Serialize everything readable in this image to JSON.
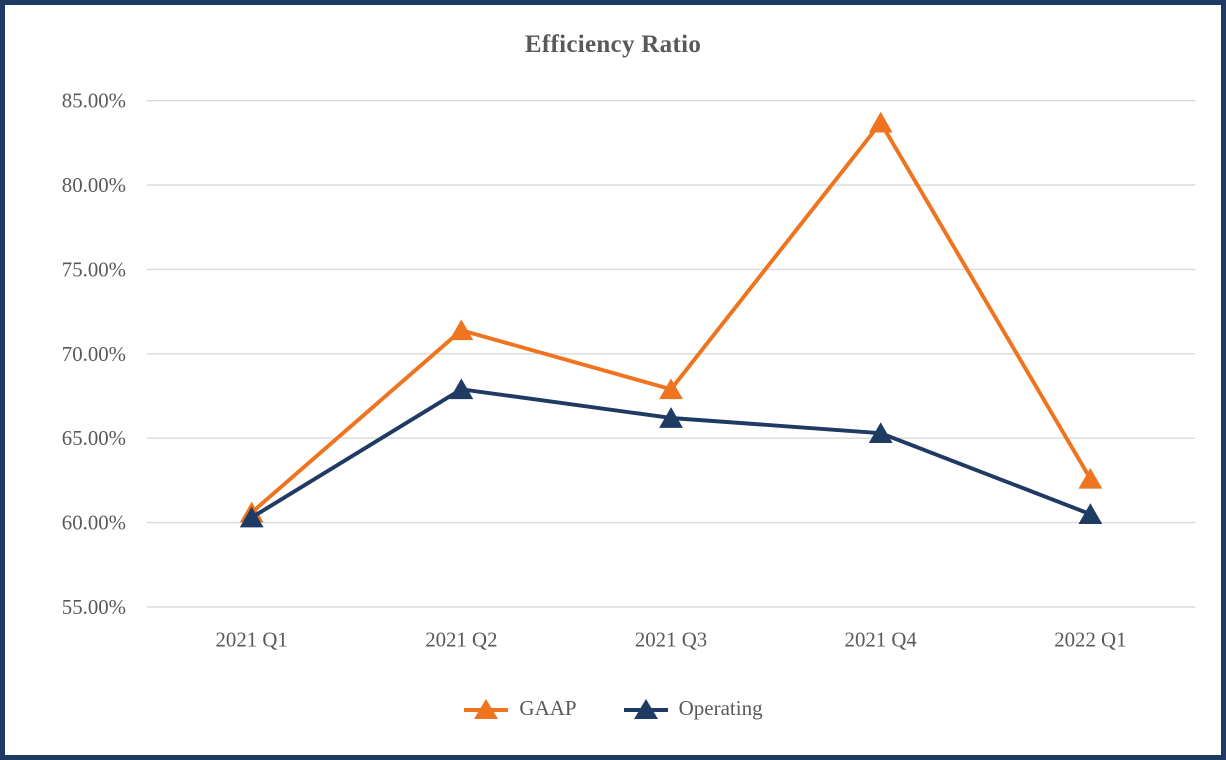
{
  "chart_data": {
    "type": "line",
    "title": "Efficiency Ratio",
    "categories": [
      "2021 Q1",
      "2021 Q2",
      "2021 Q3",
      "2021 Q4",
      "2022 Q1"
    ],
    "series": [
      {
        "name": "GAAP",
        "color": "#EE7420",
        "marker": "triangle",
        "values": [
          60.6,
          71.4,
          67.9,
          83.7,
          62.6
        ]
      },
      {
        "name": "Operating",
        "color": "#1F3A63",
        "marker": "triangle",
        "values": [
          60.3,
          67.9,
          66.2,
          65.3,
          60.5
        ]
      }
    ],
    "ylim": [
      55,
      85
    ],
    "ytick_step": 5,
    "ytick_labels": [
      "55.00%",
      "60.00%",
      "65.00%",
      "70.00%",
      "75.00%",
      "80.00%",
      "85.00%"
    ],
    "xlabel": "",
    "ylabel": "",
    "grid": "horizontal-only",
    "legend_position": "bottom"
  },
  "style": {
    "accent_orange": "#EE7420",
    "accent_navy": "#1F3A63",
    "text_gray": "#595959",
    "gridline_gray": "#D9D9D9",
    "background": "#FFFFFF",
    "frame_border": "#1F3A63"
  }
}
